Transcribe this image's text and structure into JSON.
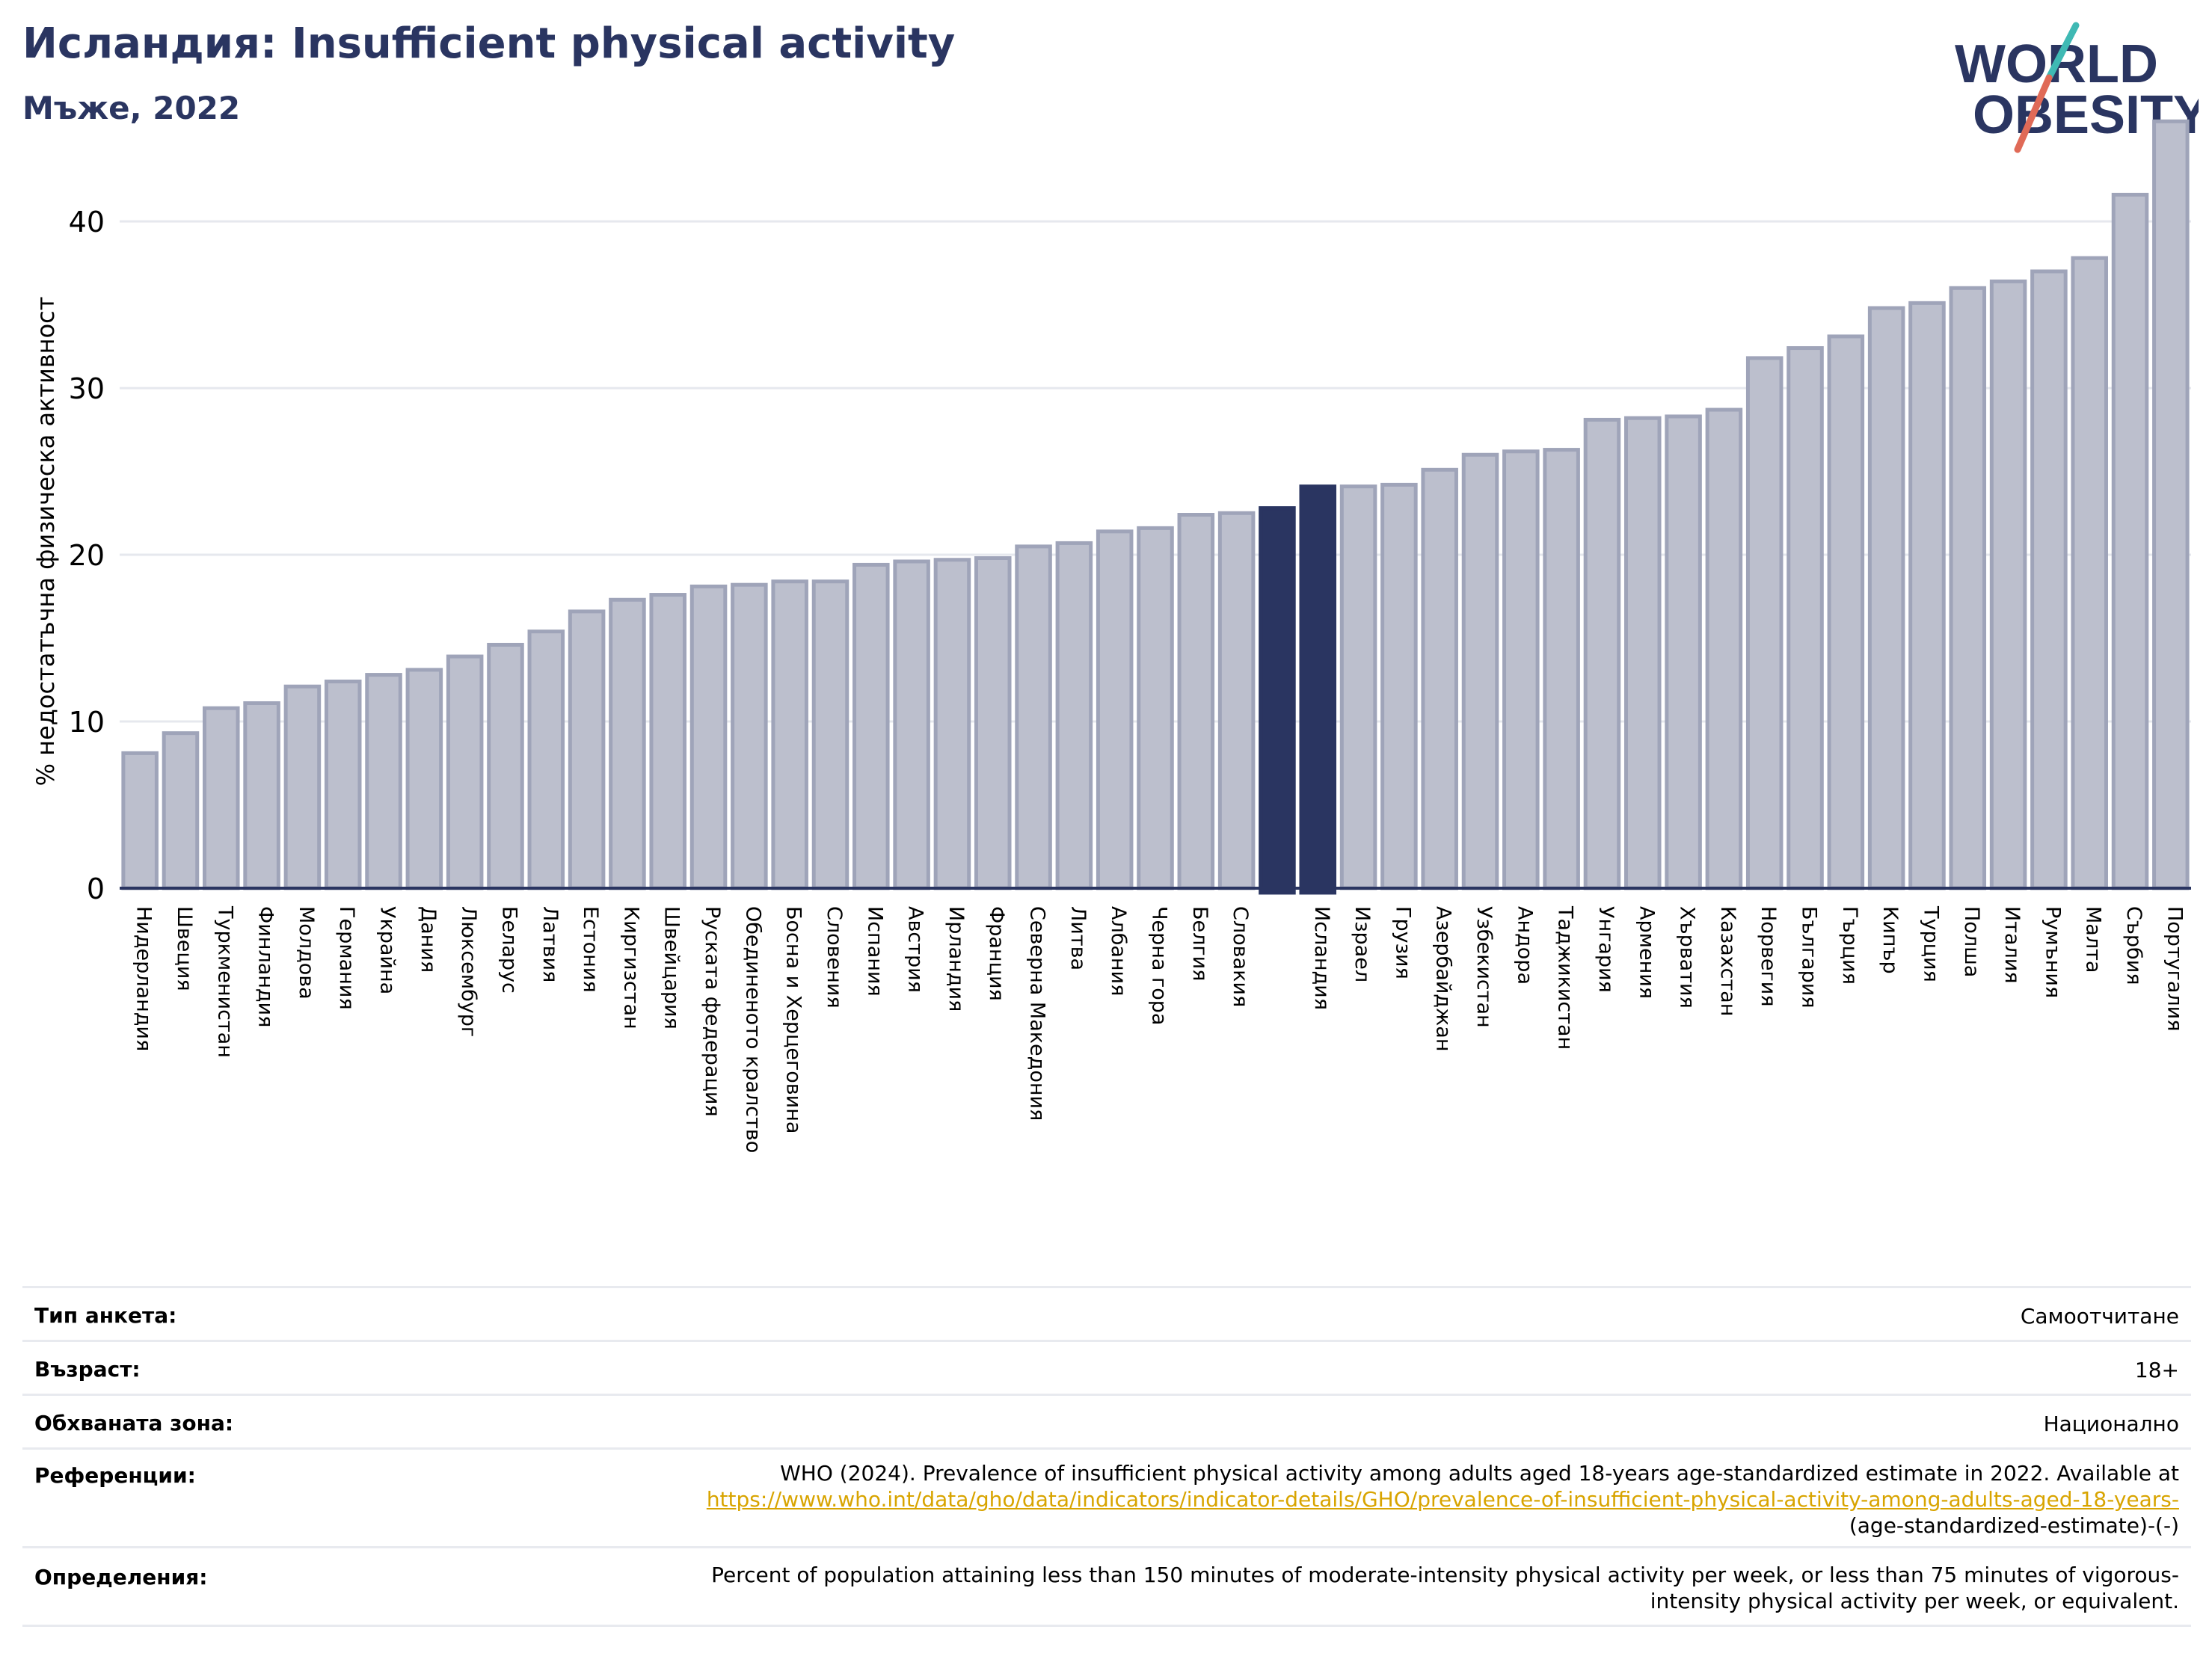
{
  "header": {
    "title": "Исландия: Insufficient physical activity",
    "subtitle": "Мъже, 2022"
  },
  "logo": {
    "line1": "WORLD",
    "line2": "OBESITY",
    "text_color": "#2a3561",
    "slash_colors": [
      "#3fb9b4",
      "#e06a57"
    ]
  },
  "colors": {
    "bar_default": "#bcbfcd",
    "bar_border": "#9fa4b9",
    "bar_highlight": "#2a3561",
    "grid": "#e6e8ee",
    "axis": "#2a3561"
  },
  "chart_data": {
    "type": "bar",
    "ylabel": "% недостатъчна физическа активност",
    "ylim": [
      0,
      47
    ],
    "yticks": [
      0,
      10,
      20,
      30,
      40
    ],
    "grid": "horizontal",
    "highlight": "Исландия",
    "categories": [
      "Нидерландия",
      "Швеция",
      "Туркменистан",
      "Финландия",
      "Молдова",
      "Германия",
      "Украйна",
      "Дания",
      "Люксембург",
      "Беларус",
      "Латвия",
      "Естония",
      "Киргизстан",
      "Швейцария",
      "Руската федерация",
      "Обединеното кралство",
      "Босна и Херцеговина",
      "Словения",
      "Испания",
      "Австрия",
      "Ирландия",
      "Франция",
      "Северна Македония",
      "Литва",
      "Албания",
      "Черна гора",
      "Белгия",
      "Словакия",
      "",
      "Исландия",
      "Израел",
      "Грузия",
      "Азербайджан",
      "Узбекистан",
      "Андора",
      "Таджикистан",
      "Унгария",
      "Армения",
      "Хърватия",
      "Казахстан",
      "Норвегия",
      "България",
      "Гърция",
      "Кипър",
      "Турция",
      "Полша",
      "Италия",
      "Румъния",
      "Малта",
      "Сърбия",
      "Португалия"
    ],
    "values": [
      8.1,
      9.3,
      10.8,
      11.1,
      12.1,
      12.4,
      12.8,
      13.1,
      13.9,
      14.6,
      15.4,
      16.6,
      17.3,
      17.6,
      18.1,
      18.2,
      18.4,
      18.4,
      19.4,
      19.6,
      19.7,
      19.8,
      20.5,
      20.7,
      21.4,
      21.6,
      22.4,
      22.5,
      22.8,
      24.1,
      24.1,
      24.2,
      25.1,
      26.0,
      26.2,
      26.3,
      28.1,
      28.2,
      28.3,
      28.7,
      31.8,
      32.4,
      33.1,
      34.8,
      35.1,
      36.0,
      36.4,
      37.0,
      37.8,
      41.6,
      46.0
    ]
  },
  "meta": {
    "survey_label": "Тип анкета:",
    "survey_value": "Самоотчитане",
    "age_label": "Възраст:",
    "age_value": "18+",
    "area_label": "Обхваната зона:",
    "area_value": "Национално",
    "refs_label": "Референции:",
    "refs_text": "WHO (2024). Prevalence of insufficient physical activity among adults aged 18-years age-standardized estimate in 2022. Available at",
    "refs_link": "https://www.who.int/data/gho/data/indicators/indicator-details/GHO/prevalence-of-insufficient-physical-activity-among-adults-aged-18-years-",
    "refs_tail": "(age-standardized-estimate)-(-)",
    "def_label": "Определения:",
    "def_line1": "Percent of population attaining less than 150 minutes of moderate-intensity physical activity per week, or less than 75 minutes of vigorous-",
    "def_line2": "intensity physical activity per week, or equivalent."
  }
}
